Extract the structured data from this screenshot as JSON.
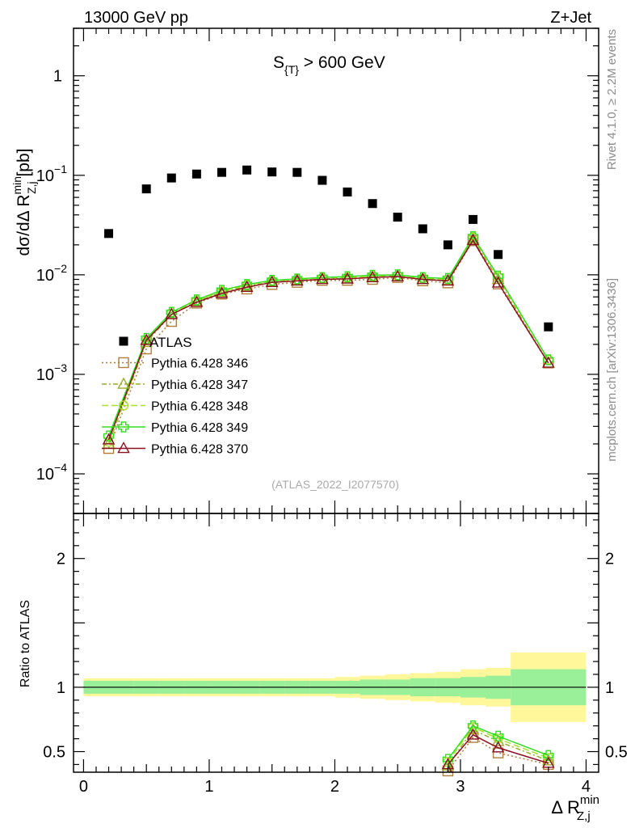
{
  "header": {
    "left_label": "13000 GeV pp",
    "right_label": "Z+Jet",
    "cut_label_main": "S",
    "cut_label_sub": "{T}",
    "cut_label_rest": " > 600 GeV",
    "analysis_id": "(ATLAS_2022_I2077570)",
    "side_note_top": "Rivet 4.1.0, ≥ 2.2M events",
    "side_note_bottom": "mcplots.cern.ch [arXiv:1306.3436]"
  },
  "axes": {
    "ylabel_main": "dσ/dΔ R",
    "ylabel_sup": "min",
    "ylabel_sub": "Z,j",
    "ylabel_unit": " [pb]",
    "ylabel_ratio": "Ratio to ATLAS",
    "xlabel_main": "Δ R",
    "xlabel_sup": "min",
    "xlabel_sub": "Z,j"
  },
  "colors": {
    "atlas": "#000000",
    "p346": "#b07d3c",
    "p347": "#9aaa2a",
    "p348": "#a8e02a",
    "p349": "#33dd22",
    "p370": "#8a1020",
    "band_inner": "#99f099",
    "band_outer": "#fff799"
  },
  "chart_data": {
    "type": "scatter",
    "title": "S_{T} > 600 GeV",
    "x": [
      0.2,
      0.5,
      0.7,
      0.9,
      1.1,
      1.3,
      1.5,
      1.7,
      1.9,
      2.1,
      2.3,
      2.5,
      2.7,
      2.9,
      3.1,
      3.3,
      3.7
    ],
    "x_edges": [
      0.0,
      0.4,
      0.6,
      0.8,
      1.0,
      1.2,
      1.4,
      1.6,
      1.8,
      2.0,
      2.2,
      2.4,
      2.6,
      2.8,
      3.0,
      3.2,
      3.4,
      4.0
    ],
    "xlim": [
      -0.08,
      4.1
    ],
    "ylim_main": [
      4e-05,
      3
    ],
    "ylim_ratio": [
      0.34,
      2.35
    ],
    "yscale_main": "log",
    "main_ticks": [
      {
        "value": 1,
        "label": "1"
      },
      {
        "value": 0.1,
        "label": "10",
        "exp": "−1"
      },
      {
        "value": 0.01,
        "label": "10",
        "exp": "−2"
      },
      {
        "value": 0.001,
        "label": "10",
        "exp": "−3"
      },
      {
        "value": 0.0001,
        "label": "10",
        "exp": "−4"
      }
    ],
    "ratio_ticks": [
      {
        "value": 0.5,
        "label": "0.5"
      },
      {
        "value": 1,
        "label": "1"
      },
      {
        "value": 2,
        "label": "2"
      }
    ],
    "x_ticks": [
      {
        "value": 0,
        "label": "0"
      },
      {
        "value": 1,
        "label": "1"
      },
      {
        "value": 2,
        "label": "2"
      },
      {
        "value": 3,
        "label": "3"
      },
      {
        "value": 4,
        "label": "4"
      }
    ],
    "data": {
      "name": "ATLAS",
      "values": [
        0.026,
        0.073,
        0.094,
        0.103,
        0.107,
        0.113,
        0.108,
        0.107,
        0.089,
        0.068,
        0.052,
        0.038,
        0.029,
        0.02,
        0.036,
        0.016,
        0.003
      ],
      "band_inner": [
        0.05,
        0.05,
        0.05,
        0.05,
        0.05,
        0.05,
        0.05,
        0.05,
        0.05,
        0.05,
        0.06,
        0.06,
        0.07,
        0.07,
        0.08,
        0.09,
        0.14
      ],
      "band_outer": [
        0.07,
        0.07,
        0.07,
        0.07,
        0.07,
        0.07,
        0.07,
        0.07,
        0.07,
        0.08,
        0.09,
        0.1,
        0.11,
        0.12,
        0.14,
        0.15,
        0.27
      ]
    },
    "series": [
      {
        "name": "Pythia 6.428 346",
        "marker": "square",
        "dash": "2,3",
        "color_key": "p346",
        "values": [
          0.00018,
          0.0018,
          0.0034,
          0.0052,
          0.0064,
          0.0072,
          0.008,
          0.0084,
          0.0088,
          0.0088,
          0.009,
          0.0094,
          0.0087,
          0.0083,
          0.022,
          0.0081,
          0.0013
        ],
        "ratio": [
          null,
          null,
          null,
          null,
          null,
          null,
          null,
          null,
          null,
          null,
          null,
          null,
          null,
          0.35,
          0.61,
          0.49,
          0.4
        ]
      },
      {
        "name": "Pythia 6.428 347",
        "marker": "triangle",
        "dash": "6,3,2,3",
        "color_key": "p347",
        "values": [
          0.0002,
          0.0021,
          0.004,
          0.0054,
          0.0067,
          0.0077,
          0.0085,
          0.0088,
          0.0091,
          0.0092,
          0.0095,
          0.0096,
          0.009,
          0.0088,
          0.023,
          0.009,
          0.0013
        ],
        "ratio": [
          null,
          null,
          null,
          null,
          null,
          null,
          null,
          null,
          null,
          null,
          null,
          null,
          null,
          0.39,
          0.67,
          0.58,
          0.43
        ]
      },
      {
        "name": "Pythia 6.428 348",
        "marker": "circle",
        "dash": "8,4",
        "color_key": "p348",
        "values": [
          0.00021,
          0.0022,
          0.0041,
          0.0055,
          0.0068,
          0.0079,
          0.0087,
          0.009,
          0.0093,
          0.0094,
          0.0097,
          0.0098,
          0.0092,
          0.009,
          0.0238,
          0.0095,
          0.0014
        ],
        "ratio": [
          null,
          null,
          null,
          null,
          null,
          null,
          null,
          null,
          null,
          null,
          null,
          null,
          null,
          0.42,
          0.69,
          0.6,
          0.45
        ]
      },
      {
        "name": "Pythia 6.428 349",
        "marker": "cross",
        "dash": "",
        "color_key": "p349",
        "values": [
          0.00024,
          0.0023,
          0.0042,
          0.0056,
          0.007,
          0.008,
          0.0088,
          0.0091,
          0.0094,
          0.0096,
          0.0099,
          0.01,
          0.0094,
          0.0092,
          0.0242,
          0.0097,
          0.0014
        ],
        "ratio": [
          null,
          null,
          null,
          null,
          null,
          null,
          null,
          null,
          null,
          null,
          null,
          null,
          null,
          0.44,
          0.7,
          0.62,
          0.47
        ]
      },
      {
        "name": "Pythia 6.428 370",
        "marker": "triangle",
        "dash": "",
        "color_key": "p370",
        "values": [
          0.00022,
          0.0022,
          0.004,
          0.0053,
          0.0065,
          0.0075,
          0.0084,
          0.0087,
          0.009,
          0.0091,
          0.0094,
          0.0096,
          0.009,
          0.0087,
          0.0222,
          0.0083,
          0.0013
        ],
        "ratio": [
          null,
          null,
          null,
          null,
          null,
          null,
          null,
          null,
          null,
          null,
          null,
          null,
          null,
          0.4,
          0.63,
          0.53,
          0.41
        ]
      }
    ]
  }
}
